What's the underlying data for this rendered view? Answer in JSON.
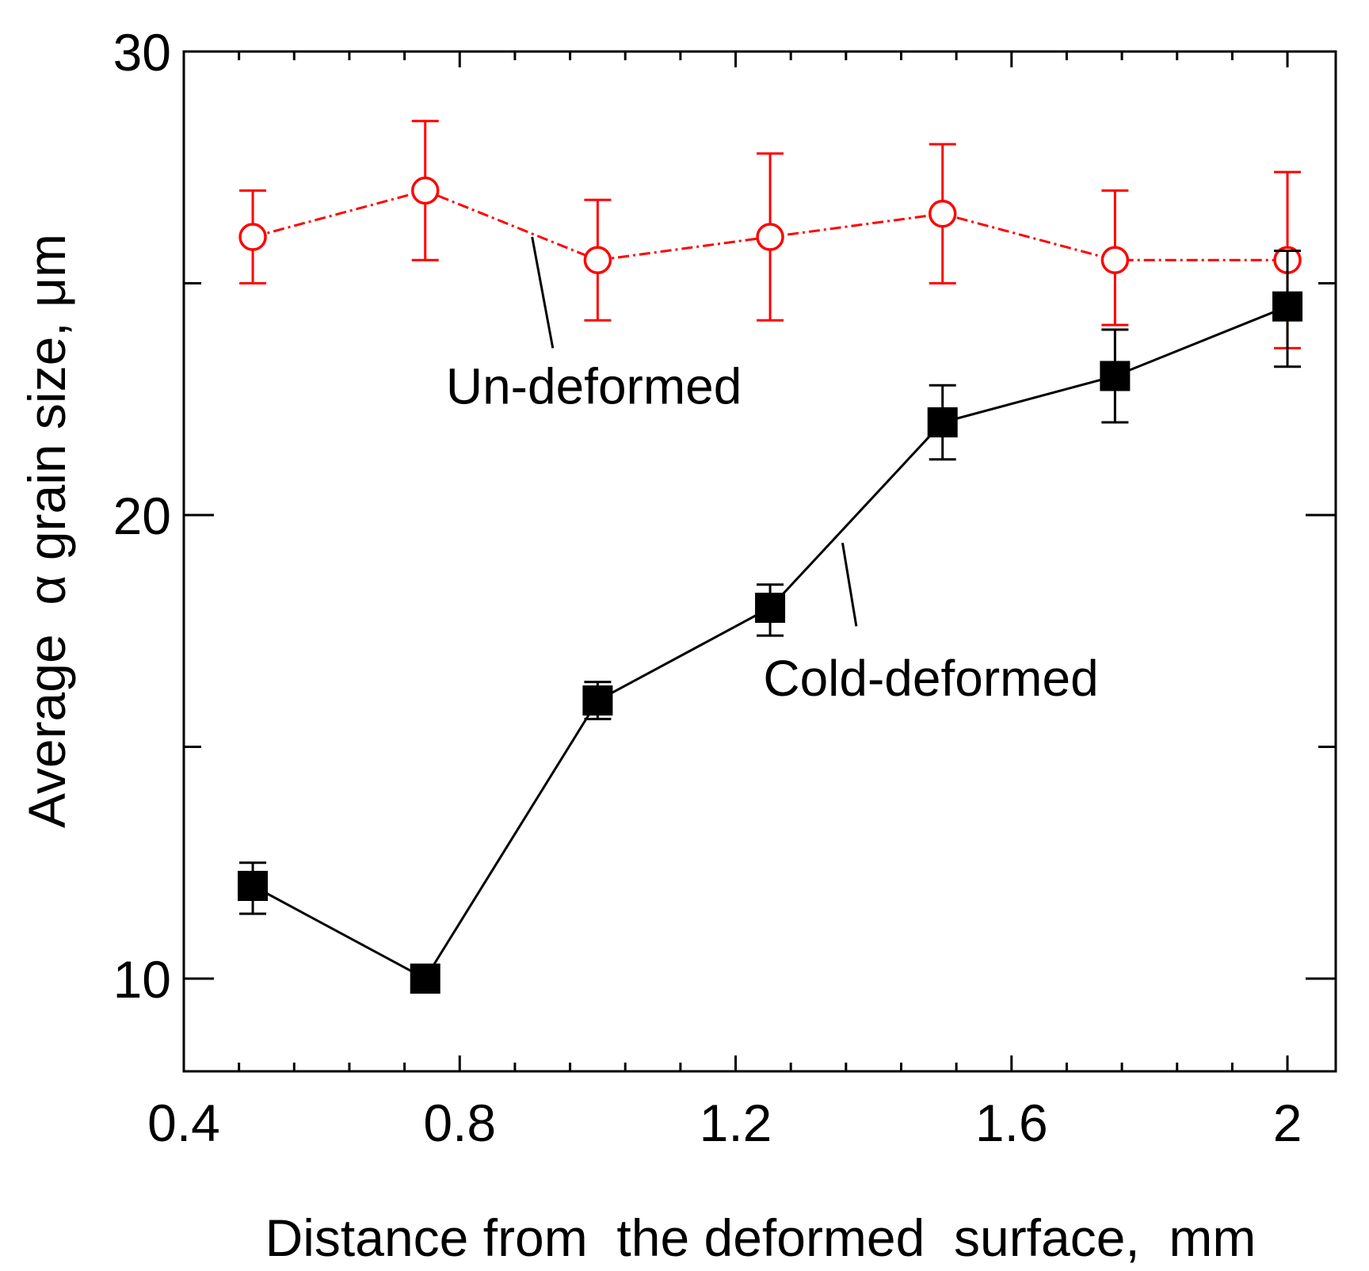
{
  "chart_data": {
    "type": "line",
    "title": "",
    "xlabel": "Distance from  the deformed  surface,  mm",
    "ylabel": "Average  α grain size, μm",
    "xlim": [
      0.4,
      2.07
    ],
    "ylim": [
      8.0,
      30.0
    ],
    "xticks": [
      0.4,
      0.8,
      1.2,
      1.6,
      2.0
    ],
    "xtick_labels": [
      "0.4",
      "0.8",
      "1.2",
      "1.6",
      "2"
    ],
    "xminor_step": 0.08,
    "yticks": [
      10,
      20,
      30
    ],
    "ytick_labels": [
      "10",
      "20",
      "30"
    ],
    "yminor": [
      15,
      25
    ],
    "grid": false,
    "series": [
      {
        "name": "Un-deformed",
        "color": "#ff0000",
        "line_style": "dash-dot",
        "marker": "open-circle",
        "x": [
          0.5,
          0.75,
          1.0,
          1.25,
          1.5,
          1.75,
          2.0
        ],
        "y": [
          26.0,
          27.0,
          25.5,
          26.0,
          26.5,
          25.5,
          25.5
        ],
        "err_low": [
          1.0,
          1.5,
          1.3,
          1.8,
          1.5,
          1.4,
          1.9
        ],
        "err_high": [
          1.0,
          1.5,
          1.3,
          1.8,
          1.5,
          1.5,
          1.9
        ]
      },
      {
        "name": "Cold-deformed",
        "color": "#000000",
        "line_style": "solid",
        "marker": "filled-square",
        "x": [
          0.5,
          0.75,
          1.0,
          1.25,
          1.5,
          1.75,
          2.0
        ],
        "y": [
          12.0,
          10.0,
          16.0,
          18.0,
          22.0,
          23.0,
          24.5
        ],
        "err_low": [
          0.6,
          0.0,
          0.4,
          0.6,
          0.8,
          1.0,
          1.3
        ],
        "err_high": [
          0.5,
          0.0,
          0.4,
          0.5,
          0.8,
          1.0,
          1.2
        ]
      }
    ],
    "annotations": [
      {
        "text": "Un-deformed",
        "series": "Un-deformed",
        "leader_from": [
          0.935,
          23.6
        ],
        "leader_to": [
          0.905,
          26.0
        ],
        "text_at": [
          0.78,
          22.4
        ]
      },
      {
        "text": "Cold-deformed",
        "series": "Cold-deformed",
        "leader_from": [
          1.375,
          17.6
        ],
        "leader_to": [
          1.355,
          19.4
        ],
        "text_at": [
          1.24,
          16.1
        ]
      }
    ]
  }
}
